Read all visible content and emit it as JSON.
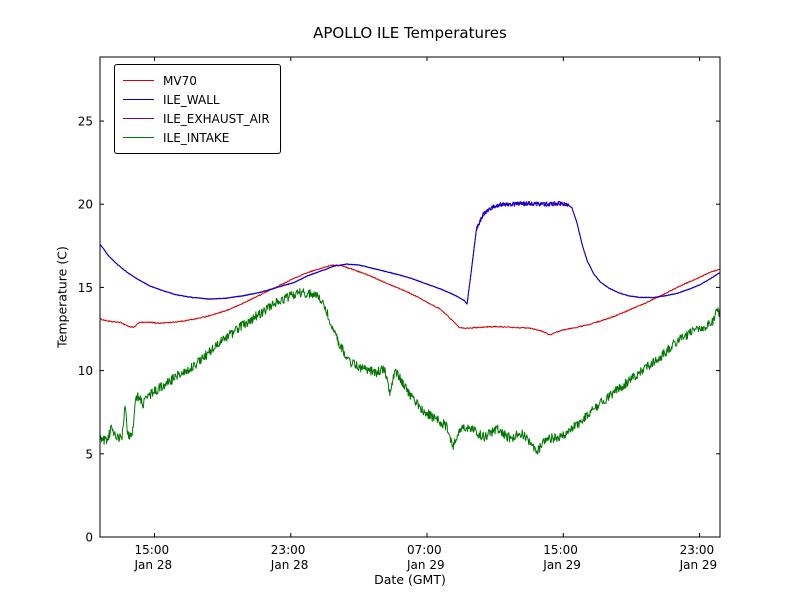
{
  "chart_data": {
    "type": "line",
    "title": "APOLLO ILE Temperatures",
    "xlabel": "Date (GMT)",
    "ylabel": "Temperature (C)",
    "x_unit": "hours since Jan 28 00:00 GMT",
    "xlim": [
      11.8,
      48.2
    ],
    "ylim": [
      0,
      28.85
    ],
    "grid": false,
    "legend_position": "upper left",
    "yticks": [
      0,
      5,
      10,
      15,
      20,
      25
    ],
    "xticks": [
      {
        "x": 15,
        "time": "15:00",
        "date": "Jan 28"
      },
      {
        "x": 23,
        "time": "23:00",
        "date": "Jan 28"
      },
      {
        "x": 31,
        "time": "07:00",
        "date": "Jan 29"
      },
      {
        "x": 39,
        "time": "15:00",
        "date": "Jan 29"
      },
      {
        "x": 47,
        "time": "23:00",
        "date": "Jan 29"
      }
    ],
    "draw_order": [
      0,
      2,
      1,
      3
    ],
    "series": [
      {
        "name": "MV70",
        "color": "#d40000",
        "noise": 0.03,
        "points": [
          [
            11.8,
            13.1
          ],
          [
            12.4,
            12.95
          ],
          [
            13.0,
            12.9
          ],
          [
            13.5,
            12.65
          ],
          [
            13.8,
            12.6
          ],
          [
            14.1,
            12.9
          ],
          [
            14.7,
            12.9
          ],
          [
            15.3,
            12.85
          ],
          [
            16.0,
            12.9
          ],
          [
            16.8,
            13.0
          ],
          [
            17.6,
            13.15
          ],
          [
            18.4,
            13.35
          ],
          [
            19.2,
            13.6
          ],
          [
            20.0,
            13.95
          ],
          [
            20.8,
            14.35
          ],
          [
            21.6,
            14.75
          ],
          [
            22.4,
            15.15
          ],
          [
            23.2,
            15.55
          ],
          [
            24.0,
            15.9
          ],
          [
            24.8,
            16.15
          ],
          [
            25.4,
            16.35
          ],
          [
            26.0,
            16.3
          ],
          [
            26.6,
            16.1
          ],
          [
            27.4,
            15.8
          ],
          [
            28.2,
            15.45
          ],
          [
            29.0,
            15.1
          ],
          [
            29.8,
            14.75
          ],
          [
            30.6,
            14.35
          ],
          [
            31.2,
            14.0
          ],
          [
            31.7,
            13.75
          ],
          [
            32.1,
            13.4
          ],
          [
            32.5,
            13.0
          ],
          [
            32.9,
            12.6
          ],
          [
            33.3,
            12.55
          ],
          [
            34.0,
            12.6
          ],
          [
            35.0,
            12.65
          ],
          [
            36.0,
            12.6
          ],
          [
            37.0,
            12.55
          ],
          [
            37.7,
            12.4
          ],
          [
            38.2,
            12.15
          ],
          [
            38.6,
            12.3
          ],
          [
            39.0,
            12.45
          ],
          [
            39.8,
            12.6
          ],
          [
            40.6,
            12.8
          ],
          [
            41.4,
            13.05
          ],
          [
            42.2,
            13.35
          ],
          [
            43.0,
            13.7
          ],
          [
            43.8,
            14.05
          ],
          [
            44.6,
            14.45
          ],
          [
            45.4,
            14.85
          ],
          [
            46.2,
            15.25
          ],
          [
            47.0,
            15.6
          ],
          [
            47.6,
            15.9
          ],
          [
            48.2,
            16.1
          ]
        ]
      },
      {
        "name": "ILE_WALL",
        "color": "#0000dd",
        "noise": 0.02,
        "noise_regions": [
          {
            "from": 33.9,
            "to": 39.3,
            "amp": 0.13
          }
        ],
        "points": [
          [
            11.8,
            17.6
          ],
          [
            12.3,
            16.9
          ],
          [
            12.8,
            16.4
          ],
          [
            13.4,
            15.9
          ],
          [
            14.0,
            15.5
          ],
          [
            14.7,
            15.1
          ],
          [
            15.5,
            14.8
          ],
          [
            16.3,
            14.55
          ],
          [
            17.2,
            14.4
          ],
          [
            18.2,
            14.3
          ],
          [
            19.2,
            14.35
          ],
          [
            20.2,
            14.5
          ],
          [
            21.2,
            14.7
          ],
          [
            22.2,
            15.0
          ],
          [
            23.2,
            15.3
          ],
          [
            24.0,
            15.7
          ],
          [
            24.8,
            16.0
          ],
          [
            25.6,
            16.3
          ],
          [
            26.3,
            16.4
          ],
          [
            27.0,
            16.35
          ],
          [
            27.8,
            16.15
          ],
          [
            28.6,
            15.95
          ],
          [
            29.4,
            15.75
          ],
          [
            30.2,
            15.5
          ],
          [
            31.0,
            15.2
          ],
          [
            31.8,
            14.9
          ],
          [
            32.6,
            14.55
          ],
          [
            33.2,
            14.2
          ],
          [
            33.35,
            14.0
          ],
          [
            33.6,
            16.0
          ],
          [
            33.9,
            18.5
          ],
          [
            34.3,
            19.4
          ],
          [
            34.8,
            19.8
          ],
          [
            35.3,
            20.0
          ],
          [
            36.0,
            20.0
          ],
          [
            37.0,
            20.05
          ],
          [
            38.0,
            20.0
          ],
          [
            38.8,
            20.05
          ],
          [
            39.2,
            20.0
          ],
          [
            39.5,
            19.8
          ],
          [
            39.8,
            18.9
          ],
          [
            40.1,
            17.6
          ],
          [
            40.4,
            16.6
          ],
          [
            40.8,
            15.8
          ],
          [
            41.2,
            15.3
          ],
          [
            41.7,
            14.95
          ],
          [
            42.2,
            14.7
          ],
          [
            42.8,
            14.5
          ],
          [
            43.5,
            14.4
          ],
          [
            44.3,
            14.4
          ],
          [
            45.0,
            14.5
          ],
          [
            45.7,
            14.65
          ],
          [
            46.4,
            14.9
          ],
          [
            47.0,
            15.15
          ],
          [
            47.6,
            15.5
          ],
          [
            48.2,
            15.9
          ]
        ]
      },
      {
        "name": "ILE_EXHAUST_AIR",
        "color": "#800080",
        "noise": 0.02,
        "noise_regions": [
          {
            "from": 33.9,
            "to": 39.3,
            "amp": 0.13
          }
        ],
        "points": [
          [
            11.8,
            17.6
          ],
          [
            12.3,
            16.9
          ],
          [
            12.8,
            16.4
          ],
          [
            13.4,
            15.9
          ],
          [
            14.0,
            15.5
          ],
          [
            14.7,
            15.1
          ],
          [
            15.5,
            14.8
          ],
          [
            16.3,
            14.55
          ],
          [
            17.2,
            14.4
          ],
          [
            18.2,
            14.3
          ],
          [
            19.2,
            14.35
          ],
          [
            20.2,
            14.5
          ],
          [
            21.2,
            14.7
          ],
          [
            22.2,
            15.0
          ],
          [
            23.2,
            15.3
          ],
          [
            24.0,
            15.7
          ],
          [
            24.8,
            16.0
          ],
          [
            25.6,
            16.3
          ],
          [
            26.3,
            16.4
          ],
          [
            27.0,
            16.35
          ],
          [
            27.8,
            16.15
          ],
          [
            28.6,
            15.95
          ],
          [
            29.4,
            15.75
          ],
          [
            30.2,
            15.5
          ],
          [
            31.0,
            15.2
          ],
          [
            31.8,
            14.9
          ],
          [
            32.6,
            14.55
          ],
          [
            33.2,
            14.2
          ],
          [
            33.35,
            14.0
          ],
          [
            33.6,
            16.0
          ],
          [
            33.9,
            18.5
          ],
          [
            34.3,
            19.4
          ],
          [
            34.8,
            19.8
          ],
          [
            35.3,
            20.0
          ],
          [
            36.0,
            20.0
          ],
          [
            37.0,
            20.05
          ],
          [
            38.0,
            20.0
          ],
          [
            38.8,
            20.05
          ],
          [
            39.2,
            20.0
          ],
          [
            39.5,
            19.8
          ],
          [
            39.8,
            18.9
          ],
          [
            40.1,
            17.6
          ],
          [
            40.4,
            16.6
          ],
          [
            40.8,
            15.8
          ],
          [
            41.2,
            15.3
          ],
          [
            41.7,
            14.95
          ],
          [
            42.2,
            14.7
          ],
          [
            42.8,
            14.5
          ],
          [
            43.5,
            14.4
          ],
          [
            44.3,
            14.4
          ],
          [
            45.0,
            14.5
          ],
          [
            45.7,
            14.65
          ],
          [
            46.4,
            14.9
          ],
          [
            47.0,
            15.15
          ],
          [
            47.6,
            15.5
          ],
          [
            48.2,
            15.9
          ]
        ]
      },
      {
        "name": "ILE_INTAKE",
        "color": "#007700",
        "noise": 0.28,
        "points": [
          [
            11.8,
            5.9
          ],
          [
            12.2,
            5.8
          ],
          [
            12.5,
            6.6
          ],
          [
            12.8,
            5.9
          ],
          [
            13.1,
            6.0
          ],
          [
            13.25,
            7.9
          ],
          [
            13.45,
            6.1
          ],
          [
            13.7,
            6.2
          ],
          [
            13.9,
            8.3
          ],
          [
            14.1,
            8.5
          ],
          [
            14.3,
            7.9
          ],
          [
            14.5,
            8.3
          ],
          [
            14.8,
            8.6
          ],
          [
            15.2,
            8.9
          ],
          [
            15.8,
            9.3
          ],
          [
            16.5,
            9.8
          ],
          [
            17.3,
            10.3
          ],
          [
            18.0,
            10.9
          ],
          [
            19.0,
            11.8
          ],
          [
            20.0,
            12.6
          ],
          [
            21.0,
            13.3
          ],
          [
            22.0,
            14.0
          ],
          [
            23.0,
            14.5
          ],
          [
            23.6,
            14.7
          ],
          [
            24.3,
            14.6
          ],
          [
            24.8,
            14.2
          ],
          [
            25.2,
            13.3
          ],
          [
            25.6,
            12.2
          ],
          [
            26.0,
            11.3
          ],
          [
            26.5,
            10.5
          ],
          [
            27.0,
            10.2
          ],
          [
            27.5,
            10.0
          ],
          [
            28.0,
            9.9
          ],
          [
            28.5,
            10.1
          ],
          [
            28.8,
            8.6
          ],
          [
            29.1,
            9.9
          ],
          [
            29.4,
            9.6
          ],
          [
            29.8,
            8.8
          ],
          [
            30.3,
            8.1
          ],
          [
            30.8,
            7.6
          ],
          [
            31.3,
            7.2
          ],
          [
            31.8,
            6.9
          ],
          [
            32.2,
            6.6
          ],
          [
            32.5,
            5.4
          ],
          [
            32.8,
            6.2
          ],
          [
            33.2,
            6.6
          ],
          [
            33.6,
            6.5
          ],
          [
            34.0,
            6.2
          ],
          [
            34.4,
            6.0
          ],
          [
            34.8,
            6.3
          ],
          [
            35.2,
            6.5
          ],
          [
            35.6,
            6.1
          ],
          [
            36.0,
            5.9
          ],
          [
            36.4,
            6.3
          ],
          [
            36.8,
            6.0
          ],
          [
            37.2,
            5.5
          ],
          [
            37.5,
            5.2
          ],
          [
            37.8,
            5.6
          ],
          [
            38.2,
            5.9
          ],
          [
            38.6,
            6.0
          ],
          [
            39.0,
            6.1
          ],
          [
            39.5,
            6.5
          ],
          [
            40.0,
            6.9
          ],
          [
            40.5,
            7.4
          ],
          [
            41.0,
            7.9
          ],
          [
            41.5,
            8.3
          ],
          [
            42.0,
            8.7
          ],
          [
            42.5,
            9.1
          ],
          [
            43.0,
            9.5
          ],
          [
            43.5,
            9.9
          ],
          [
            44.0,
            10.3
          ],
          [
            44.5,
            10.7
          ],
          [
            45.0,
            11.1
          ],
          [
            45.5,
            11.6
          ],
          [
            46.0,
            12.0
          ],
          [
            46.5,
            12.3
          ],
          [
            47.0,
            12.5
          ],
          [
            47.4,
            12.7
          ],
          [
            47.8,
            13.0
          ],
          [
            48.0,
            13.6
          ],
          [
            48.2,
            13.5
          ]
        ]
      }
    ]
  }
}
